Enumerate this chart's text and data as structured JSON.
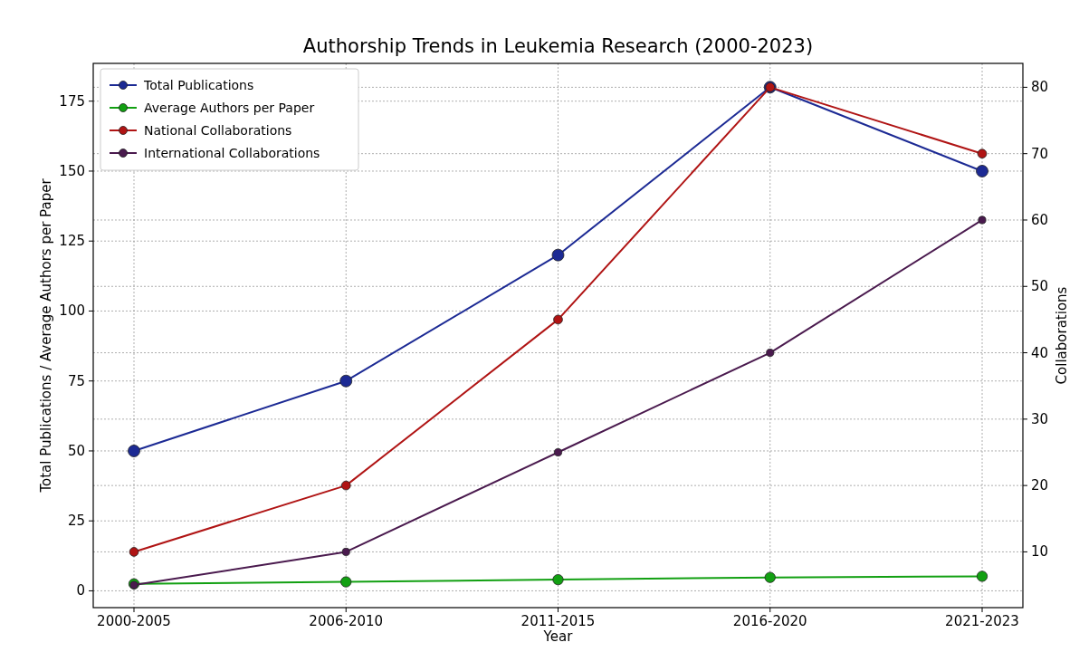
{
  "chart_data": {
    "type": "line",
    "title": "Authorship Trends in Leukemia Research (2000-2023)",
    "xlabel": "Year",
    "ylabel": "Total Publications / Average Authors per Paper",
    "y2label": "Collaborations",
    "categories": [
      "2000-2005",
      "2006-2010",
      "2011-2015",
      "2016-2020",
      "2021-2023"
    ],
    "series": [
      {
        "name": "Total Publications",
        "color": "#1c2a94",
        "values": [
          50,
          75,
          120,
          180,
          150
        ]
      },
      {
        "name": "Average Authors per Paper",
        "color": "#12a012",
        "values": [
          2.5,
          3.2,
          4.0,
          4.8,
          5.2
        ]
      },
      {
        "name": "National Collaborations",
        "color": "#b01414",
        "values": [
          10,
          20,
          45,
          80,
          70
        ],
        "axis": "y2"
      },
      {
        "name": "International Collaborations",
        "color": "#4a1a4e",
        "values": [
          5,
          10,
          25,
          40,
          60
        ],
        "axis": "y2"
      }
    ],
    "ylim": [
      -6,
      188.5
    ],
    "yticks": [
      0,
      25,
      50,
      75,
      100,
      125,
      150,
      175
    ],
    "y2lim": [
      1.6,
      83.6
    ],
    "y2ticks": [
      10,
      20,
      30,
      40,
      50,
      60,
      70,
      80
    ],
    "grid": true,
    "legend": "top left",
    "marker": "circle",
    "line_style": "solid"
  }
}
